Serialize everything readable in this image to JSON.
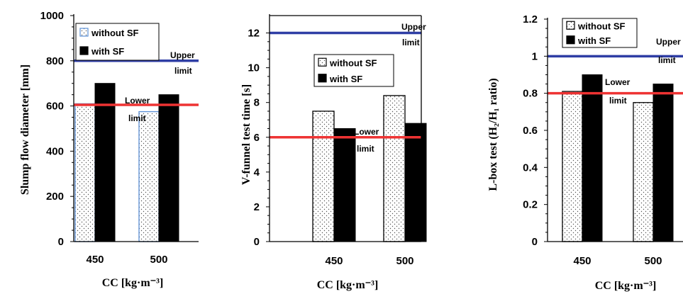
{
  "chart_data": [
    {
      "type": "bar",
      "categories": [
        "450",
        "500"
      ],
      "series": [
        {
          "name": "without SF",
          "values": [
            610,
            575
          ],
          "color": "#ffffff",
          "edge": "#5b8fd6",
          "pattern": "dots"
        },
        {
          "name": "with SF",
          "values": [
            700,
            650
          ],
          "color": "#000000"
        }
      ],
      "ylabel": "Slump flow diameter [mm]",
      "xlabel": "CC [kg·m⁻³]",
      "ylim": [
        0,
        1000
      ],
      "yticks": [
        "0",
        "200",
        "400",
        "600",
        "800",
        "1000"
      ],
      "limits": [
        {
          "value": 800,
          "color": "#2f3ea5",
          "label": "Upper",
          "sublabel": "limit"
        },
        {
          "value": 605,
          "color": "#ee3333",
          "label": "Lower",
          "sublabel": "limit"
        }
      ],
      "legend": "top-left"
    },
    {
      "type": "bar",
      "categories": [
        "450",
        "500"
      ],
      "series": [
        {
          "name": "without SF",
          "values": [
            7.5,
            8.4
          ],
          "color": "#ffffff",
          "edge": "#000000",
          "pattern": "dots"
        },
        {
          "name": "with SF",
          "values": [
            6.5,
            6.8
          ],
          "color": "#000000"
        }
      ],
      "ylabel": "V-funnel test time [s]",
      "xlabel": "CC [kg·m⁻³]",
      "ylim": [
        0,
        13
      ],
      "yticks": [
        "0",
        "2",
        "4",
        "6",
        "8",
        "10",
        "12"
      ],
      "limits": [
        {
          "value": 12,
          "color": "#2f3ea5",
          "label": "Upper",
          "sublabel": "limit"
        },
        {
          "value": 6,
          "color": "#ee3333",
          "label": "Lower",
          "sublabel": "limit"
        }
      ],
      "legend": "top-center"
    },
    {
      "type": "bar",
      "categories": [
        "450",
        "500"
      ],
      "series": [
        {
          "name": "without SF",
          "values": [
            0.81,
            0.75
          ],
          "color": "#ffffff",
          "edge": "#000000",
          "pattern": "dots"
        },
        {
          "name": "with SF",
          "values": [
            0.9,
            0.85
          ],
          "color": "#000000"
        }
      ],
      "ylabel": "L-box test (H₂/H₁ ratio)",
      "xlabel": "CC [kg·m⁻³]",
      "ylim": [
        0,
        1.2
      ],
      "yticks": [
        "0",
        "0.2",
        "0.4",
        "0.6",
        "0.8",
        "1",
        "1.2"
      ],
      "limits": [
        {
          "value": 1.0,
          "color": "#2f3ea5",
          "label": "Upper",
          "sublabel": "limit"
        },
        {
          "value": 0.8,
          "color": "#ee3333",
          "label": "Lower",
          "sublabel": "limit"
        }
      ],
      "legend": "top-left"
    }
  ]
}
